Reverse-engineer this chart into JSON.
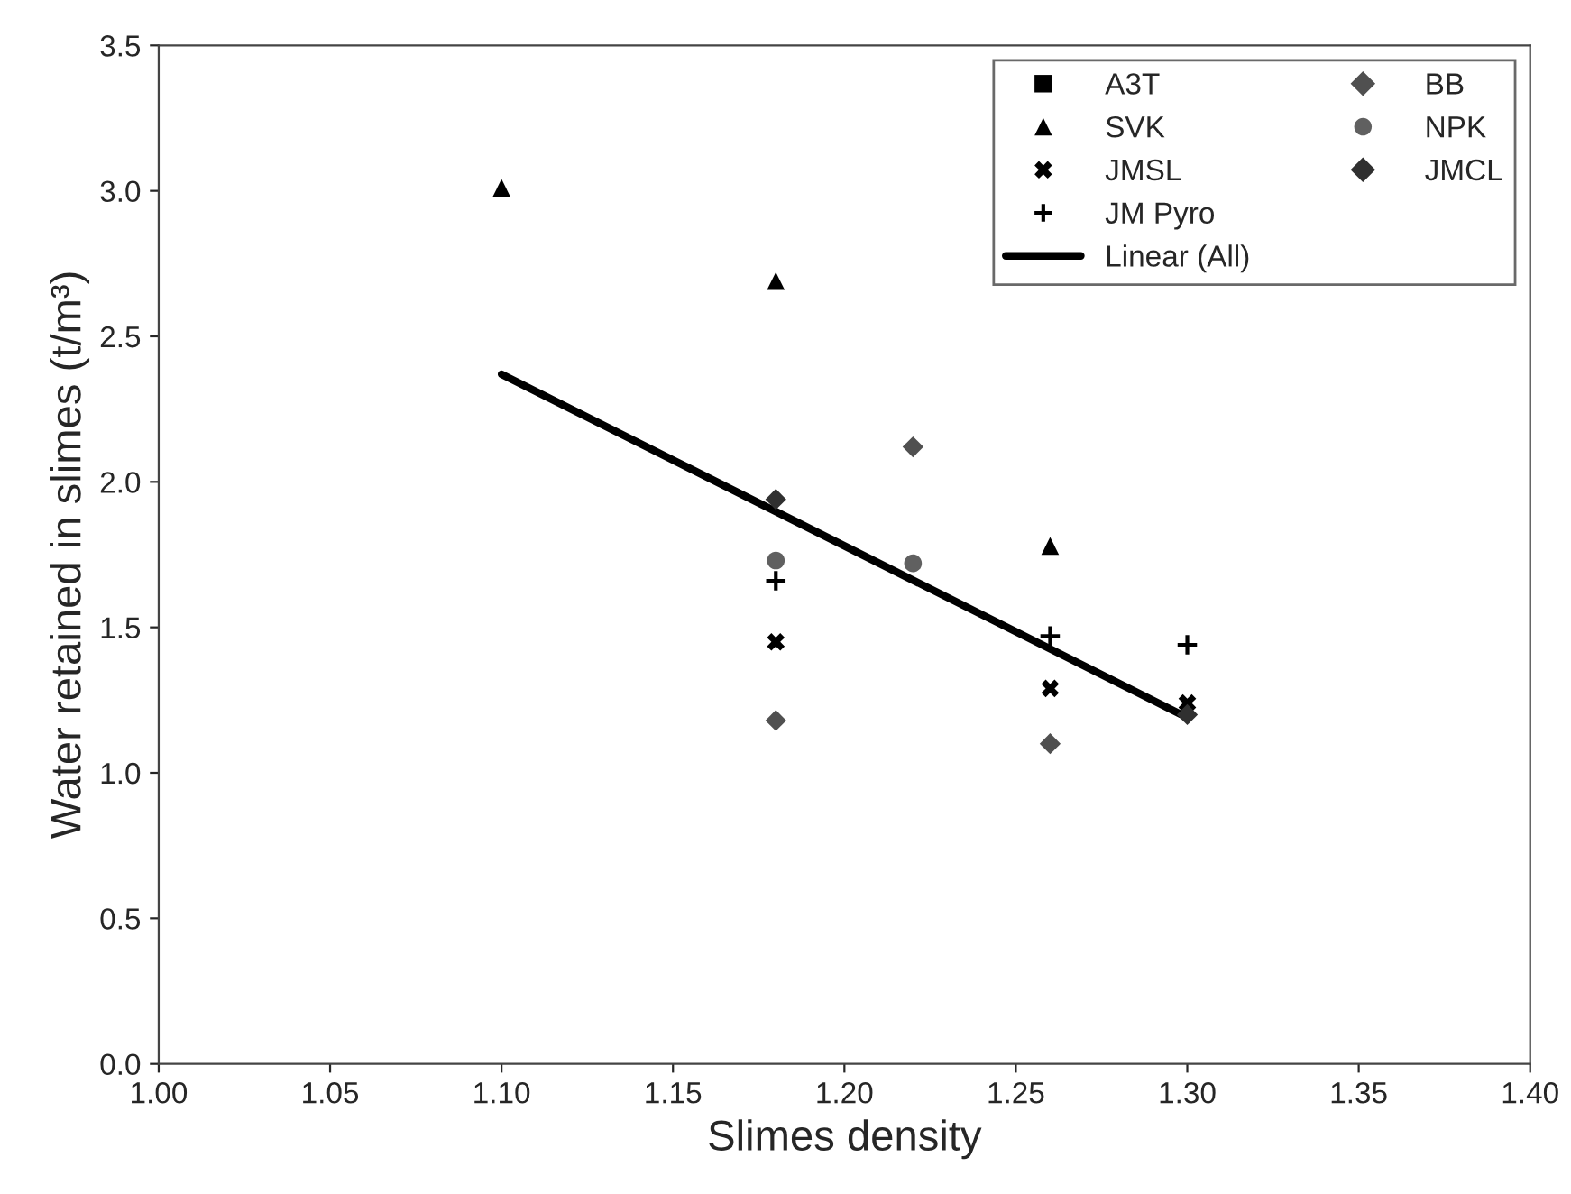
{
  "chart_data": {
    "type": "scatter",
    "xlabel": "Slimes density",
    "ylabel": "Water retained in slimes (t/m³)",
    "xlim": [
      1.0,
      1.4
    ],
    "xticks": [
      {
        "value": 1.0,
        "label": "1.00"
      },
      {
        "value": 1.05,
        "label": "1.05"
      },
      {
        "value": 1.1,
        "label": "1.10"
      },
      {
        "value": 1.15,
        "label": "1.15"
      },
      {
        "value": 1.2,
        "label": "1.20"
      },
      {
        "value": 1.25,
        "label": "1.25"
      },
      {
        "value": 1.3,
        "label": "1.30"
      },
      {
        "value": 1.35,
        "label": "1.35"
      },
      {
        "value": 1.4,
        "label": "1.40"
      }
    ],
    "ylim": [
      0,
      3.5
    ],
    "yticks": [
      {
        "value": 0,
        "label": "0.0"
      },
      {
        "value": 0.5,
        "label": "0.5"
      },
      {
        "value": 1.0,
        "label": "1.0"
      },
      {
        "value": 1.5,
        "label": "1.5"
      },
      {
        "value": 2.0,
        "label": "2.0"
      },
      {
        "value": 2.5,
        "label": "2.5"
      },
      {
        "value": 3.0,
        "label": "3.0"
      },
      {
        "value": 3.5,
        "label": "3.5"
      }
    ],
    "grid": false,
    "legend": "top right",
    "series": [
      {
        "name": "A3T",
        "color": "#000000",
        "marker": "square"
      },
      {
        "name": "SVK",
        "color": "#000000",
        "marker": "triangle",
        "x": [
          1.1,
          1.18,
          1.26
        ],
        "values": [
          3.01,
          2.69,
          1.78
        ]
      },
      {
        "name": "JMSL",
        "color": "#000000",
        "marker": "cross",
        "x": [
          1.18,
          1.26,
          1.3
        ],
        "values": [
          1.45,
          1.29,
          1.24
        ]
      },
      {
        "name": "JM Pyro",
        "color": "#000000",
        "marker": "plus",
        "x": [
          1.18,
          1.26,
          1.3
        ],
        "values": [
          1.66,
          1.47,
          1.44
        ]
      },
      {
        "name": "Linear (All)",
        "type": "line",
        "color": "#000000",
        "marker": "none",
        "x": [
          1.1,
          1.3
        ],
        "values": [
          2.37,
          1.19
        ]
      },
      {
        "name": "BB",
        "color": "#505050",
        "marker": "diamond",
        "x": [
          1.18,
          1.22,
          1.26
        ],
        "values": [
          1.18,
          2.12,
          1.1
        ]
      },
      {
        "name": "NPK",
        "color": "#606060",
        "marker": "circle",
        "x": [
          1.18,
          1.22
        ],
        "values": [
          1.73,
          1.72
        ]
      },
      {
        "name": "JMCL",
        "color": "#303030",
        "marker": "diamond",
        "x": [
          1.18,
          1.3
        ],
        "values": [
          1.94,
          1.2
        ]
      }
    ]
  }
}
